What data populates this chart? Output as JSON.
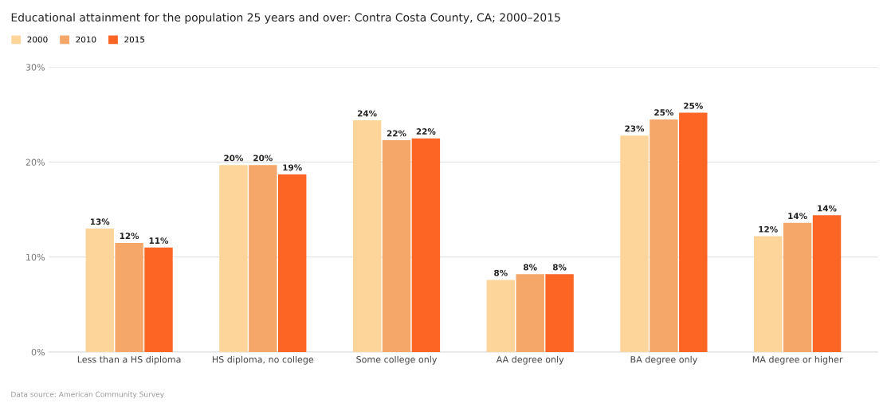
{
  "chart_data": {
    "type": "bar",
    "title": "Educational attainment for the population 25 years and over: Contra Costa County, CA; 2000–2015",
    "categories": [
      "Less than a HS diploma",
      "HS diploma, no college",
      "Some college only",
      "AA degree only",
      "BA degree only",
      "MA degree or higher"
    ],
    "series": [
      {
        "name": "2000",
        "color": "#fdd59a",
        "values": [
          13.0,
          19.7,
          24.4,
          7.6,
          22.8,
          12.2
        ],
        "value_labels": [
          "13%",
          "20%",
          "24%",
          "8%",
          "23%",
          "12%"
        ]
      },
      {
        "name": "2010",
        "color": "#f5a76a",
        "values": [
          11.5,
          19.7,
          22.3,
          8.2,
          24.5,
          13.6
        ],
        "value_labels": [
          "12%",
          "20%",
          "22%",
          "8%",
          "25%",
          "14%"
        ]
      },
      {
        "name": "2015",
        "color": "#fc6524",
        "values": [
          11.0,
          18.7,
          22.5,
          8.2,
          25.2,
          14.4
        ],
        "value_labels": [
          "11%",
          "19%",
          "22%",
          "8%",
          "25%",
          "14%"
        ]
      }
    ],
    "ylim": [
      0,
      30
    ],
    "yticks": [
      {
        "value": 0,
        "label": "0%"
      },
      {
        "value": 10,
        "label": "10%"
      },
      {
        "value": 20,
        "label": "20%"
      },
      {
        "value": 30,
        "label": "30%"
      }
    ],
    "grid": "y",
    "legend": "top left",
    "annotations": [
      "Data source: American Community Survey"
    ]
  }
}
